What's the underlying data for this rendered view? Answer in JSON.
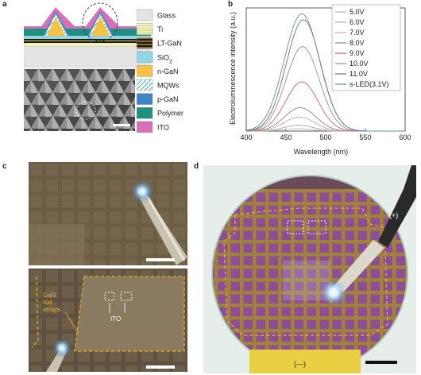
{
  "panels": {
    "a": "a",
    "b": "b",
    "c": "c",
    "d": "d"
  },
  "panel_a": {
    "legend": [
      {
        "label": "Glass",
        "color": "#e4e4e4",
        "pattern": "plain"
      },
      {
        "label": "Ti",
        "color": "#f2f5c8",
        "pattern": "lines"
      },
      {
        "label": "LT-GaN",
        "color": "#1a1a1a",
        "pattern": "stripes"
      },
      {
        "label": "SiO",
        "sub": "2",
        "color": "#8fd6e6",
        "pattern": "plain"
      },
      {
        "label": "n-GaN",
        "color": "#f7c244",
        "pattern": "plain"
      },
      {
        "label": "MQWs",
        "color": "#ffffff",
        "pattern": "hatch"
      },
      {
        "label": "p-GaN",
        "color": "#3f86c9",
        "pattern": "plain"
      },
      {
        "label": "Polymer",
        "color": "#1f8f80",
        "pattern": "plain"
      },
      {
        "label": "ITO",
        "color": "#d671b8",
        "pattern": "plain"
      }
    ]
  },
  "panel_c": {
    "rod_label_lines": [
      "GaN",
      "rod",
      "arrays"
    ],
    "ito_label": "ITO"
  },
  "panel_d": {
    "plus_label": "(+)",
    "minus_label": "(—)"
  },
  "chart_data": {
    "type": "line",
    "title": "",
    "xlabel": "Wavelength (nm)",
    "ylabel": "Electroluminescence intensity (a.u.)",
    "xlim": [
      400,
      600
    ],
    "ylim": [
      0,
      1.05
    ],
    "xticks": [
      400,
      450,
      500,
      550,
      600
    ],
    "legend_position": "top-right",
    "grid": false,
    "series": [
      {
        "name": "5.0V",
        "color": "#b8b8b8",
        "peak": 465,
        "amp": 0.02
      },
      {
        "name": "6.0V",
        "color": "#a8a8a8",
        "peak": 466,
        "amp": 0.05
      },
      {
        "name": "7.0V",
        "color": "#d8a0a8",
        "peak": 467,
        "amp": 0.12
      },
      {
        "name": "8.0V",
        "color": "#8a8a8a",
        "peak": 468,
        "amp": 0.2
      },
      {
        "name": "9.0V",
        "color": "#c86868",
        "peak": 470,
        "amp": 0.42
      },
      {
        "name": "10.0V",
        "color": "#909090",
        "peak": 471,
        "amp": 0.72
      },
      {
        "name": "11.0V",
        "color": "#707070",
        "peak": 472,
        "amp": 0.95
      },
      {
        "name": "s-LED(3.1V)",
        "color": "#5a8fa6",
        "peak": 470,
        "amp": 1.0
      }
    ]
  }
}
